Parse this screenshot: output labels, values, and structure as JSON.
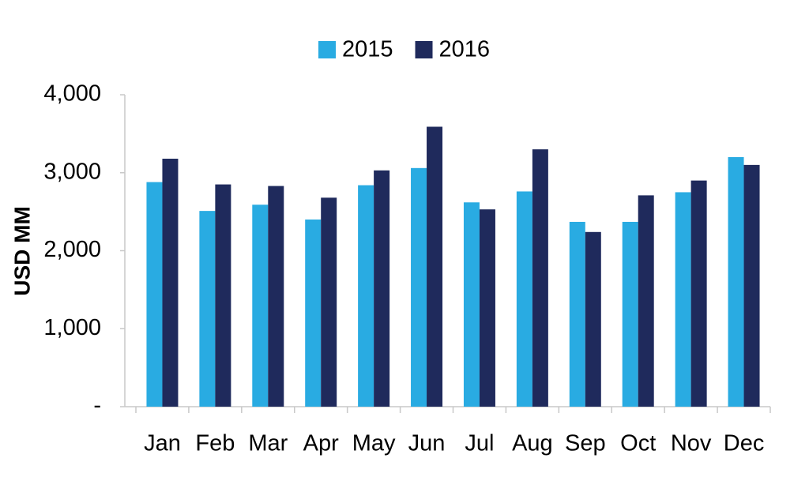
{
  "chart_data": {
    "type": "bar",
    "y_label": "USD MM",
    "categories": [
      "Jan",
      "Feb",
      "Mar",
      "Apr",
      "May",
      "Jun",
      "Jul",
      "Aug",
      "Sep",
      "Oct",
      "Nov",
      "Dec"
    ],
    "series": [
      {
        "name": "2015",
        "color": "#29abe2",
        "values": [
          2880,
          2510,
          2590,
          2400,
          2840,
          3060,
          2620,
          2760,
          2370,
          2370,
          2750,
          3200
        ]
      },
      {
        "name": "2016",
        "color": "#1f2a5c",
        "values": [
          3180,
          2850,
          2830,
          2680,
          3030,
          3590,
          2530,
          3300,
          2240,
          2710,
          2900,
          3100
        ]
      }
    ],
    "ylim": [
      0,
      4000
    ],
    "yticks": [
      {
        "value": 0,
        "label": "-"
      },
      {
        "value": 1000,
        "label": "1,000"
      },
      {
        "value": 2000,
        "label": "2,000"
      },
      {
        "value": 3000,
        "label": "3,000"
      },
      {
        "value": 4000,
        "label": "4,000"
      }
    ],
    "grid": false,
    "legend": "top"
  }
}
